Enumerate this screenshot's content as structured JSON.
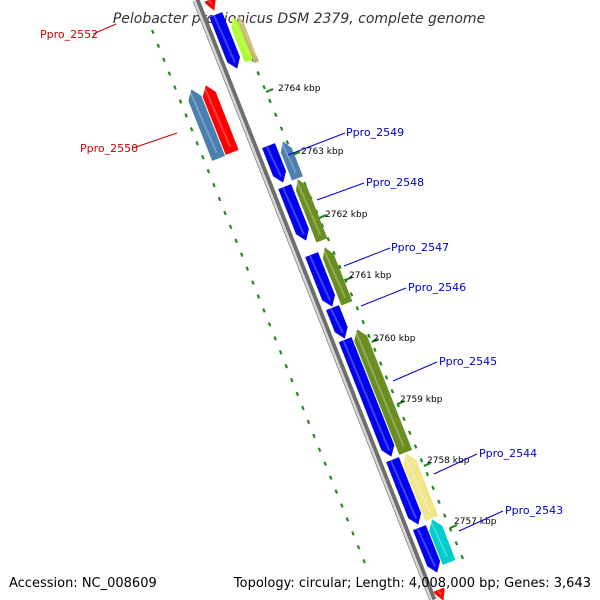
{
  "title": "Pelobacter propionicus DSM 2379, complete genome",
  "footer": {
    "accession": "Accession: NC_008609",
    "topology": "Topology: circular; Length: 4,008,000 bp; Genes: 3,643"
  },
  "kbp_labels": [
    "2764 kbp",
    "2763 kbp",
    "2762 kbp",
    "2761 kbp",
    "2760 kbp",
    "2759 kbp",
    "2758 kbp",
    "2757 kbp"
  ],
  "gene_labels_right": [
    "Ppro_2549",
    "Ppro_2548",
    "Ppro_2547",
    "Ppro_2546",
    "Ppro_2545",
    "Ppro_2544",
    "Ppro_2543"
  ],
  "gene_labels_left": [
    "Ppro_2552",
    "Ppro_2550"
  ],
  "colors": {
    "blue": "#0000ee",
    "red": "#ff0000",
    "steel": "#4a7fb0",
    "olive": "#6b8e23",
    "khaki": "#f0e68c",
    "cyan": "#00cccc",
    "lime": "#adff2f",
    "tan": "#c8b070",
    "backbone": "#808080",
    "tick": "#228b22",
    "label_blue": "#0000cc",
    "label_red": "#cc0000"
  }
}
